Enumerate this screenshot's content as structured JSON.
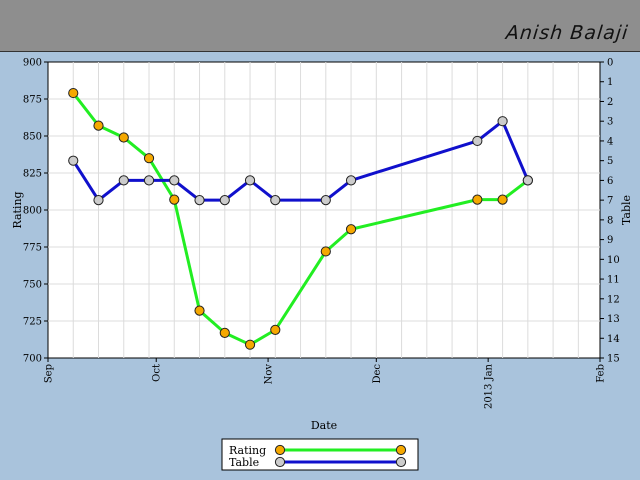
{
  "header": {
    "name": "Anish Balaji"
  },
  "chart_data": {
    "type": "line",
    "xlabel": "Date",
    "ylabel": "Rating",
    "y2label": "Table",
    "ylim": [
      700,
      900
    ],
    "y2lim": [
      0,
      15
    ],
    "y2_inverted": true,
    "grid": true,
    "legend_position": "bottom-center",
    "x_ticks": [
      {
        "date": "2012-09-01",
        "label": "Sep"
      },
      {
        "date": "2012-10-01",
        "label": "Oct"
      },
      {
        "date": "2012-11-01",
        "label": "Nov"
      },
      {
        "date": "2012-12-01",
        "label": "Dec"
      },
      {
        "date": "2013-01-01",
        "label": "2013 Jan"
      },
      {
        "date": "2013-02-01",
        "label": "Feb"
      }
    ],
    "y_ticks": [
      700,
      725,
      750,
      775,
      800,
      825,
      850,
      875,
      900
    ],
    "y2_ticks": [
      0,
      1,
      2,
      3,
      4,
      5,
      6,
      7,
      8,
      9,
      10,
      11,
      12,
      13,
      14,
      15
    ],
    "series": [
      {
        "name": "Rating",
        "axis": "left",
        "color": "#22ee22",
        "marker_color": "#f5a800",
        "points": [
          {
            "date": "2012-09-08",
            "value": 879
          },
          {
            "date": "2012-09-15",
            "value": 857
          },
          {
            "date": "2012-09-22",
            "value": 849
          },
          {
            "date": "2012-09-29",
            "value": 835
          },
          {
            "date": "2012-10-06",
            "value": 807
          },
          {
            "date": "2012-10-13",
            "value": 732
          },
          {
            "date": "2012-10-20",
            "value": 717
          },
          {
            "date": "2012-10-27",
            "value": 709
          },
          {
            "date": "2012-11-03",
            "value": 719
          },
          {
            "date": "2012-11-17",
            "value": 772
          },
          {
            "date": "2012-11-24",
            "value": 787
          },
          {
            "date": "2012-12-29",
            "value": 807
          },
          {
            "date": "2013-01-05",
            "value": 807
          },
          {
            "date": "2013-01-12",
            "value": 820
          }
        ]
      },
      {
        "name": "Table",
        "axis": "right",
        "color": "#1010cc",
        "marker_color": "#cccccc",
        "points": [
          {
            "date": "2012-09-08",
            "value": 5
          },
          {
            "date": "2012-09-15",
            "value": 7
          },
          {
            "date": "2012-09-22",
            "value": 6
          },
          {
            "date": "2012-09-29",
            "value": 6
          },
          {
            "date": "2012-10-06",
            "value": 6
          },
          {
            "date": "2012-10-13",
            "value": 7
          },
          {
            "date": "2012-10-20",
            "value": 7
          },
          {
            "date": "2012-10-27",
            "value": 6
          },
          {
            "date": "2012-11-03",
            "value": 7
          },
          {
            "date": "2012-11-17",
            "value": 7
          },
          {
            "date": "2012-11-24",
            "value": 6
          },
          {
            "date": "2012-12-29",
            "value": 4
          },
          {
            "date": "2013-01-05",
            "value": 3
          },
          {
            "date": "2013-01-12",
            "value": 6
          }
        ]
      }
    ]
  }
}
